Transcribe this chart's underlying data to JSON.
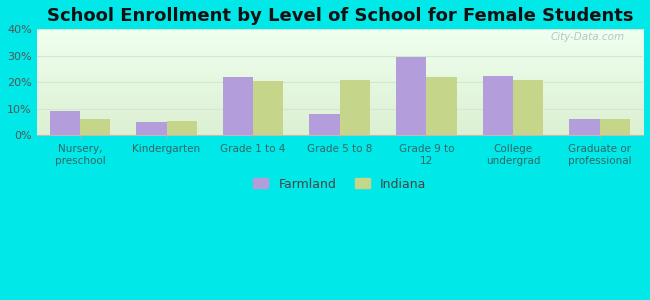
{
  "title": "School Enrollment by Level of School for Female Students",
  "categories": [
    "Nursery,\npreschool",
    "Kindergarten",
    "Grade 1 to 4",
    "Grade 5 to 8",
    "Grade 9 to\n12",
    "College\nundergrad",
    "Graduate or\nprofessional"
  ],
  "farmland_values": [
    9.0,
    5.0,
    22.0,
    8.0,
    29.5,
    22.5,
    6.0
  ],
  "indiana_values": [
    6.0,
    5.5,
    20.5,
    21.0,
    22.0,
    21.0,
    6.0
  ],
  "farmland_color": "#b39ddb",
  "indiana_color": "#c5d58a",
  "ylim": [
    0,
    40
  ],
  "yticks": [
    0,
    10,
    20,
    30,
    40
  ],
  "ytick_labels": [
    "0%",
    "10%",
    "20%",
    "30%",
    "40%"
  ],
  "outer_bg": "#00e8e8",
  "grid_color": "#d0e8d0",
  "title_fontsize": 13,
  "legend_labels": [
    "Farmland",
    "Indiana"
  ],
  "bar_width": 0.35,
  "watermark": "City-Data.com"
}
